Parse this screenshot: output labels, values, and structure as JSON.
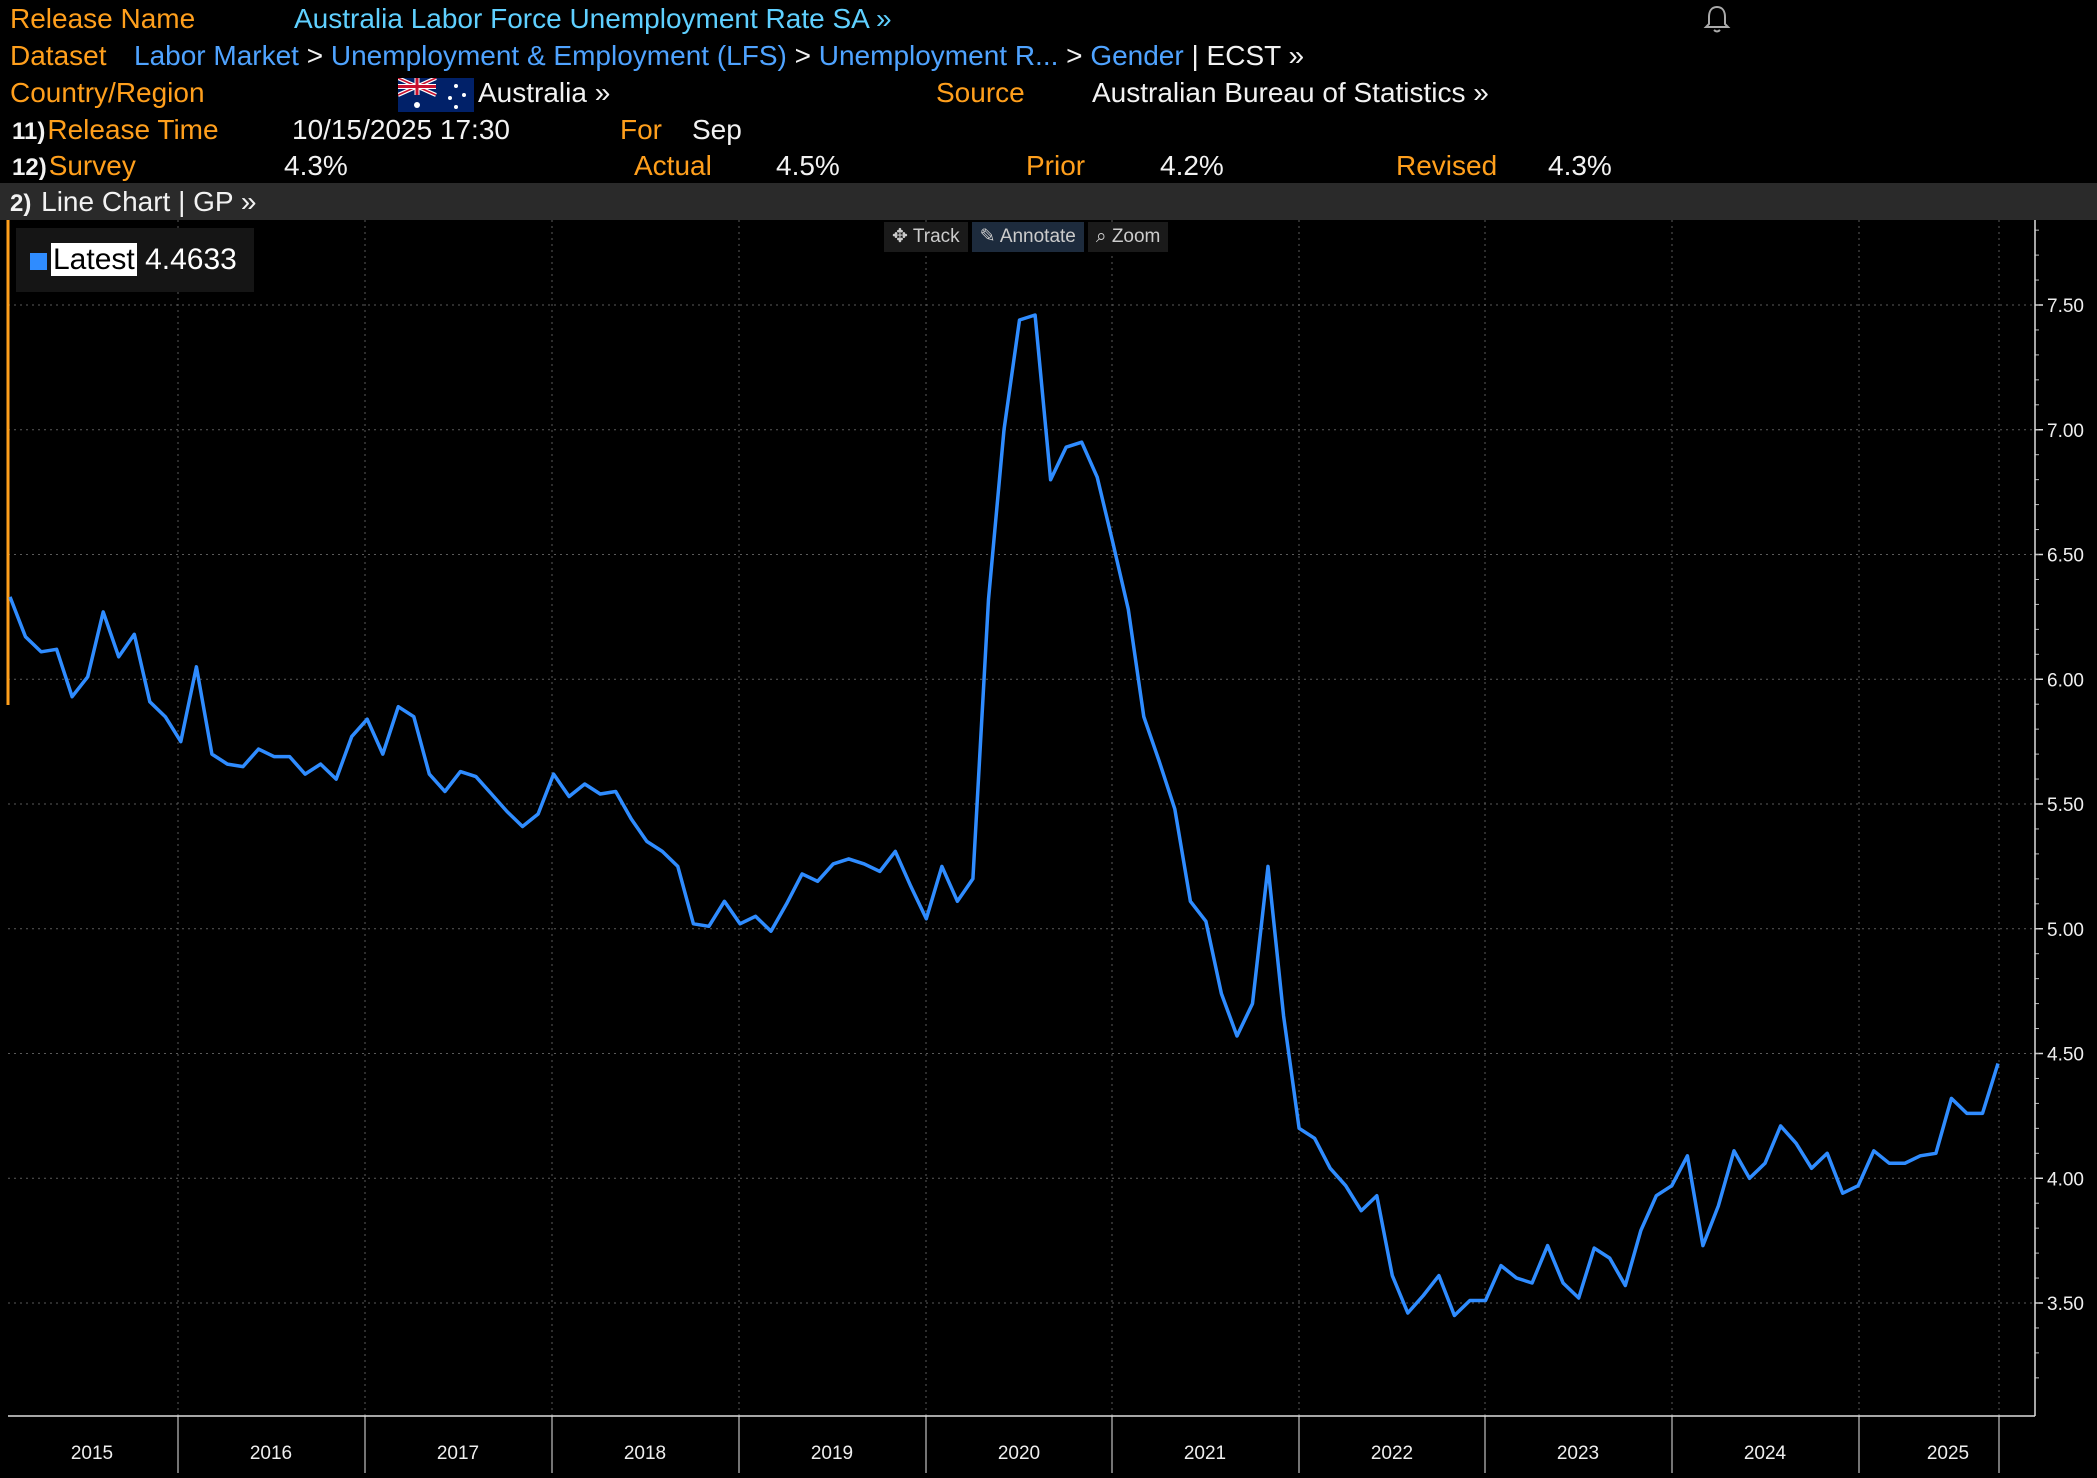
{
  "header": {
    "release_name_label": "Release Name",
    "release_name_value": "Australia Labor Force Unemployment Rate SA »",
    "dataset_label": "Dataset",
    "dataset_path": [
      "Labor Market",
      "Unemployment & Employment (LFS)",
      "Unemployment R...",
      "Gender"
    ],
    "dataset_tail": "| ECST »",
    "country_label": "Country/Region",
    "country_value": "Australia »",
    "source_label": "Source",
    "source_value": "Australian Bureau of Statistics »",
    "release_time_num": "11)",
    "release_time_label": "Release Time",
    "release_time_value": "10/15/2025 17:30",
    "for_label": "For",
    "for_value": "Sep",
    "survey_num": "12)",
    "survey_label": "Survey",
    "survey_value": "4.3%",
    "actual_label": "Actual",
    "actual_value": "4.5%",
    "prior_label": "Prior",
    "prior_value": "4.2%",
    "revised_label": "Revised",
    "revised_value": "4.3%"
  },
  "subbar": {
    "num": "2)",
    "label": "Line Chart | GP »"
  },
  "toolbar": {
    "track": "Track",
    "annotate": "Annotate",
    "zoom": "Zoom"
  },
  "legend": {
    "label": "Latest",
    "value": "4.4633"
  },
  "colors": {
    "amber": "#ff9f1c",
    "line": "#2f8cff",
    "link": "#4fa3ff"
  },
  "chart_data": {
    "type": "line",
    "ylim": [
      3.1,
      7.8
    ],
    "y_ticks": [
      "3.50",
      "4.00",
      "4.50",
      "5.00",
      "5.50",
      "6.00",
      "6.50",
      "7.00",
      "7.50"
    ],
    "x_labels": [
      "2015",
      "2016",
      "2017",
      "2018",
      "2019",
      "2020",
      "2021",
      "2022",
      "2023",
      "2024",
      "2025"
    ],
    "series": [
      {
        "values": [
          6.33,
          6.17,
          6.11,
          6.12,
          5.93,
          6.01,
          6.27,
          6.09,
          6.18,
          5.91,
          5.85,
          5.75,
          6.05,
          5.7,
          5.66,
          5.65,
          5.72,
          5.69,
          5.69,
          5.62,
          5.66,
          5.6,
          5.77,
          5.84,
          5.7,
          5.89,
          5.85,
          5.62,
          5.55,
          5.63,
          5.61,
          5.54,
          5.47,
          5.41,
          5.46,
          5.62,
          5.53,
          5.58,
          5.54,
          5.55,
          5.44,
          5.35,
          5.31,
          5.25,
          5.02,
          5.01,
          5.11,
          5.02,
          5.05,
          4.99,
          5.1,
          5.22,
          5.19,
          5.26,
          5.28,
          5.26,
          5.23,
          5.31,
          5.17,
          5.04,
          5.25,
          5.11,
          5.2,
          6.32,
          7.0,
          7.44,
          7.46,
          6.8,
          6.93,
          6.95,
          6.81,
          6.55,
          6.28,
          5.85,
          5.67,
          5.48,
          5.11,
          5.03,
          4.74,
          4.57,
          4.7,
          5.25,
          4.65,
          4.2,
          4.16,
          4.04,
          3.97,
          3.87,
          3.93,
          3.61,
          3.46,
          3.53,
          3.61,
          3.45,
          3.51,
          3.51,
          3.65,
          3.6,
          3.58,
          3.73,
          3.58,
          3.52,
          3.72,
          3.68,
          3.57,
          3.79,
          3.93,
          3.97,
          4.09,
          3.73,
          3.89,
          4.11,
          4.0,
          4.06,
          4.21,
          4.14,
          4.04,
          4.1,
          3.94,
          3.97,
          4.11,
          4.06,
          4.06,
          4.09,
          4.1,
          4.32,
          4.26,
          4.26,
          4.46
        ]
      }
    ]
  }
}
